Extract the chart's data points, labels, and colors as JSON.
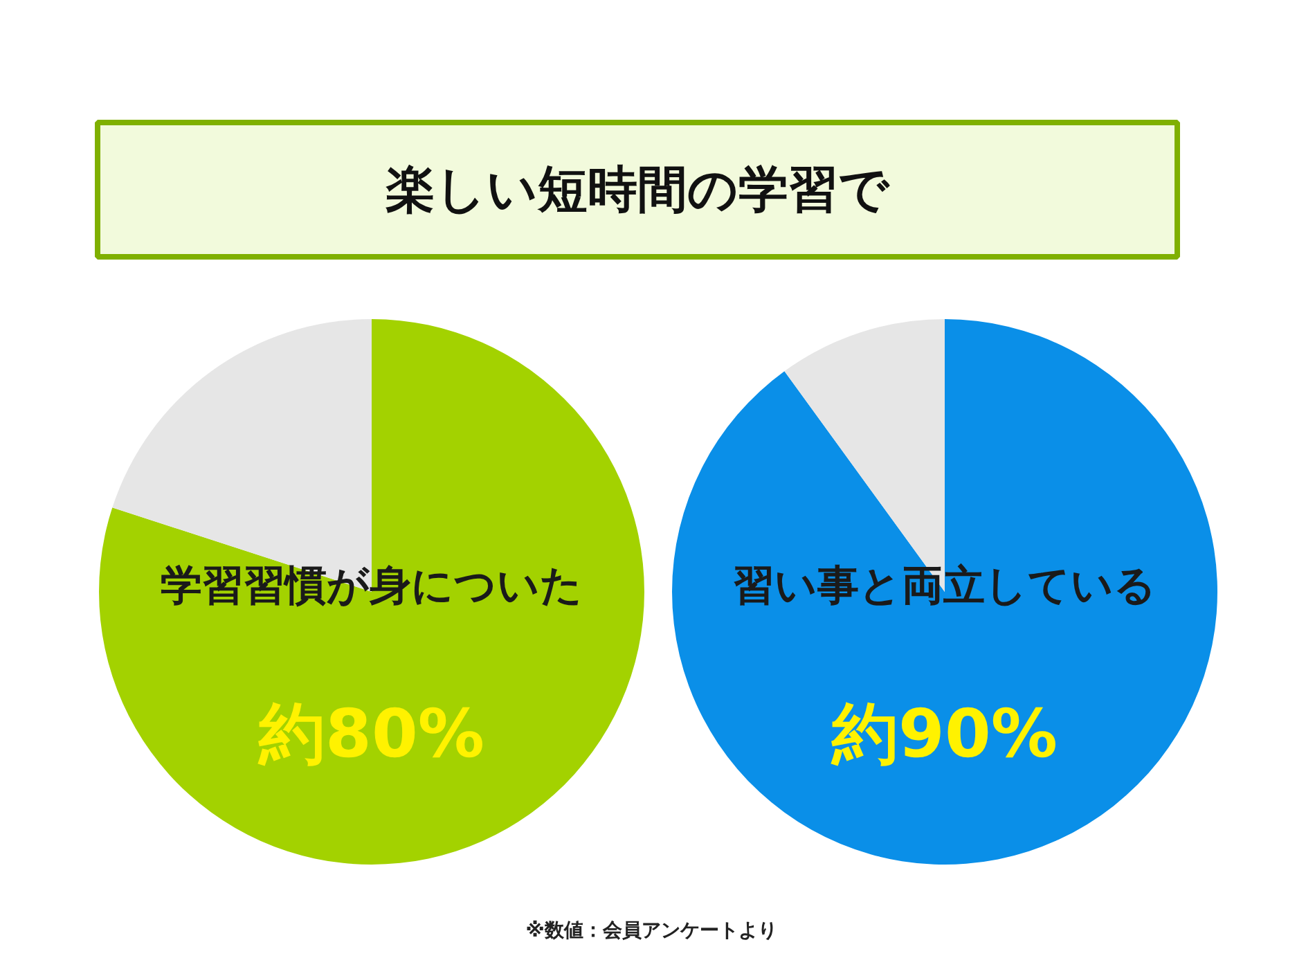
{
  "chart_data": [
    {
      "type": "pie",
      "title": "楽しい短時間の学習で",
      "categories": [
        "学習習慣が身についた",
        null
      ],
      "values": [
        80,
        20
      ],
      "colors": [
        "#a3d200",
        "#e6e6e6"
      ],
      "value_labels": [
        "約80%",
        null
      ]
    },
    {
      "type": "pie",
      "categories": [
        "習い事と両立している",
        null
      ],
      "values": [
        90,
        10
      ],
      "colors": [
        "#0a8fe8",
        "#e6e6e6"
      ],
      "value_labels": [
        "約90%",
        null
      ],
      "annotations": [
        "※数値：会員アンケートより"
      ]
    }
  ]
}
